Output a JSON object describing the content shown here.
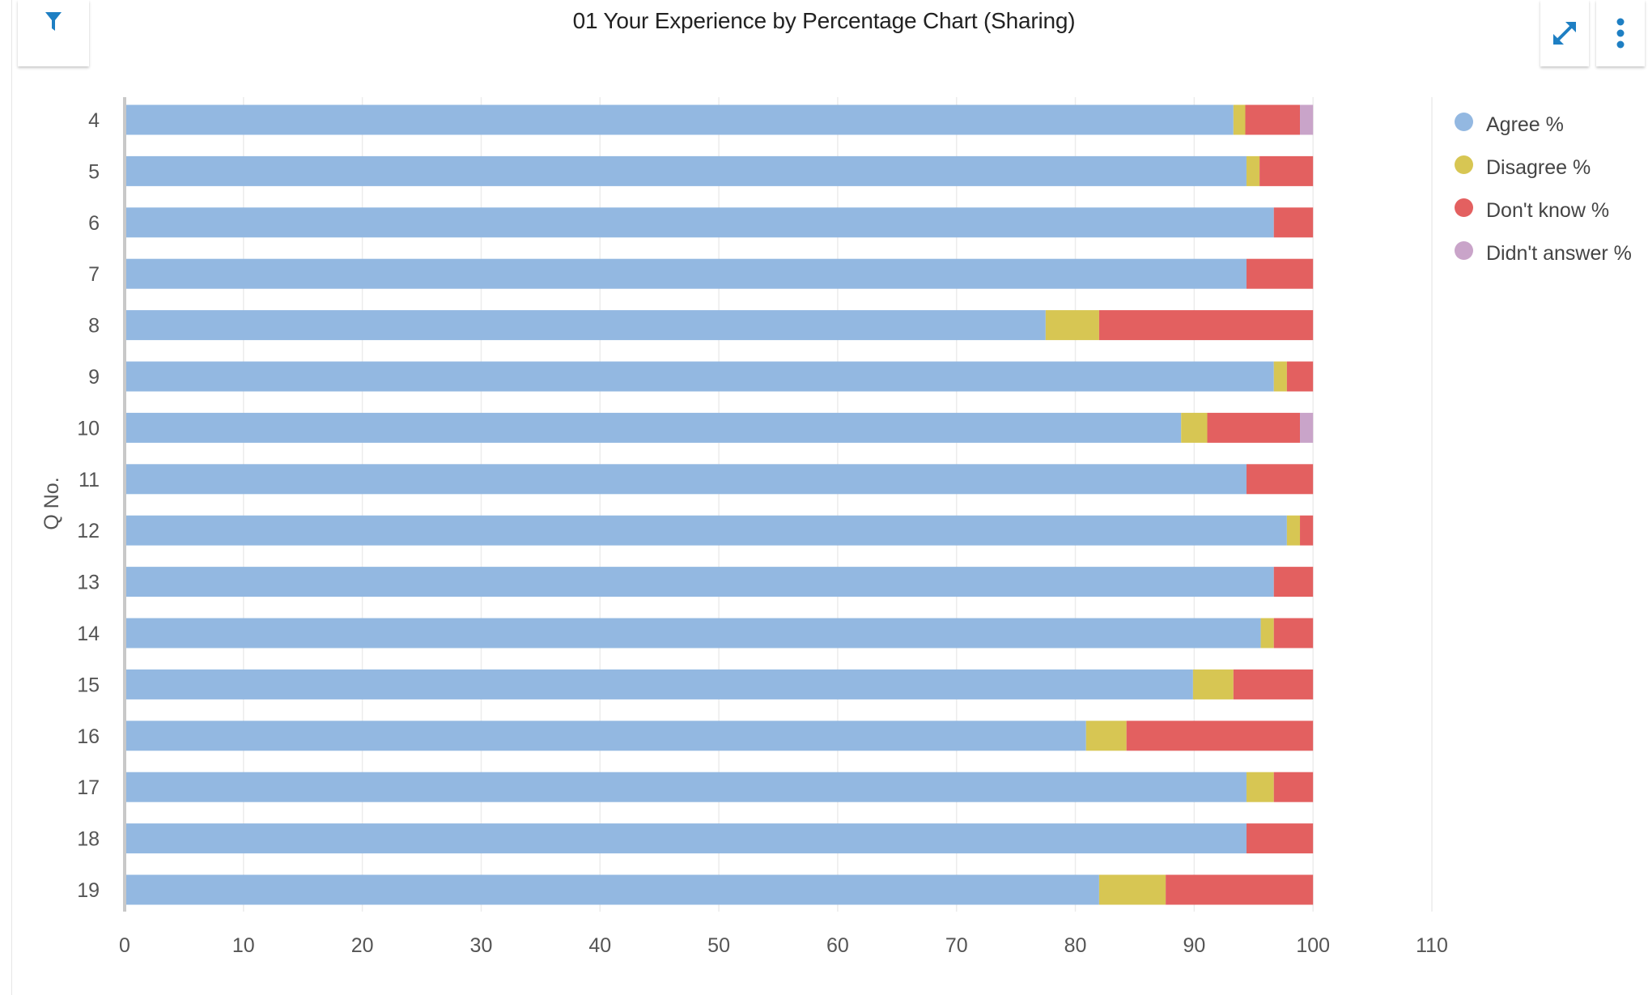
{
  "header": {
    "title": "01 Your Experience by Percentage Chart (Sharing)",
    "filter_icon": "filter-icon",
    "expand_icon": "expand-icon",
    "more_icon": "more-vertical-icon"
  },
  "colors": {
    "agree": "#93b8e1",
    "disagree": "#d7c653",
    "dont_know": "#e36060",
    "didnt_answer": "#c9a4c9",
    "accent": "#1e7fc3"
  },
  "chart_data": {
    "type": "bar",
    "orientation": "horizontal",
    "stacked": true,
    "title": "01 Your Experience by Percentage Chart (Sharing)",
    "xlabel": "",
    "ylabel": "Q No.",
    "xlim": [
      0,
      110
    ],
    "xticks": [
      0,
      10,
      20,
      30,
      40,
      50,
      60,
      70,
      80,
      90,
      100,
      110
    ],
    "categories": [
      "4",
      "5",
      "6",
      "7",
      "8",
      "9",
      "10",
      "11",
      "12",
      "13",
      "14",
      "15",
      "16",
      "17",
      "18",
      "19"
    ],
    "series": [
      {
        "name": "Agree %",
        "values": [
          93.3,
          94.4,
          96.7,
          94.4,
          77.5,
          96.7,
          88.9,
          94.4,
          97.8,
          96.7,
          95.6,
          89.9,
          80.9,
          94.4,
          94.4,
          82.0
        ]
      },
      {
        "name": "Disagree %",
        "values": [
          1.0,
          1.1,
          0,
          0,
          4.5,
          1.1,
          2.2,
          0,
          1.1,
          0,
          1.1,
          3.4,
          3.4,
          2.3,
          0,
          5.6
        ]
      },
      {
        "name": "Don't know %",
        "values": [
          4.6,
          4.5,
          3.3,
          5.6,
          18.0,
          2.2,
          7.8,
          5.6,
          1.1,
          3.3,
          3.3,
          6.7,
          15.7,
          3.3,
          5.6,
          12.4
        ]
      },
      {
        "name": "Didn't answer %",
        "values": [
          1.1,
          0,
          0,
          0,
          0,
          0,
          1.1,
          0,
          0,
          0,
          0,
          0,
          0,
          0,
          0,
          0
        ]
      }
    ],
    "grid": true,
    "legend_position": "right"
  }
}
